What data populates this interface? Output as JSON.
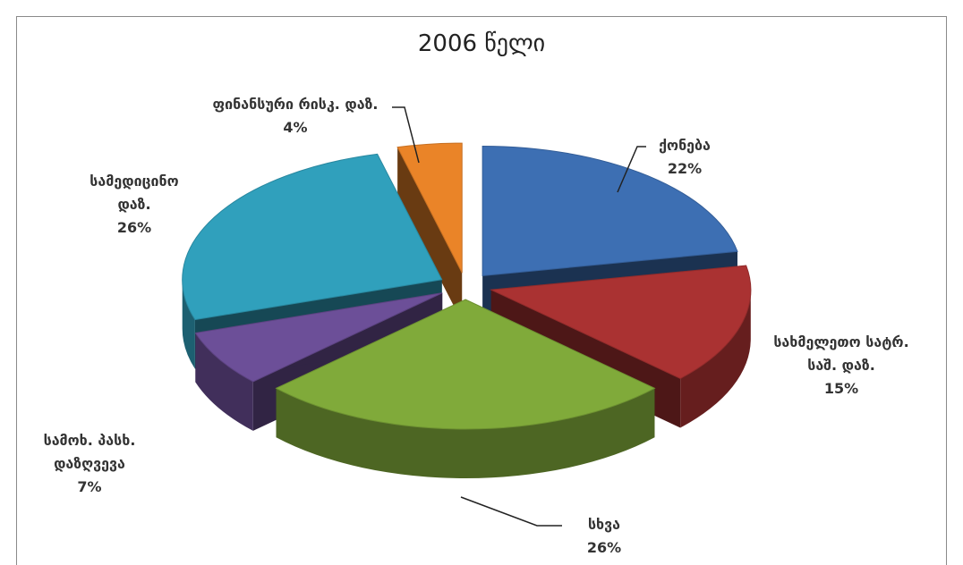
{
  "chart_data": {
    "type": "pie3d",
    "title": "2006 წელი",
    "categories": [
      "ქონება",
      "სახმელეთო სატრ. საშ. დაზ.",
      "სხვა",
      "სამოხ. პასხ. დაზღვევა",
      "სამედიცინო დაზ.",
      "ფინანსური რისკ. დაზ."
    ],
    "values": [
      22,
      15,
      26,
      7,
      26,
      4
    ],
    "value_labels": [
      "22%",
      "15%",
      "26%",
      "7%",
      "26%",
      "4%"
    ],
    "colors": [
      "#3d6fb3",
      "#aa3232",
      "#80aa3a",
      "#6c4f98",
      "#30a0bc",
      "#ea8428"
    ]
  }
}
